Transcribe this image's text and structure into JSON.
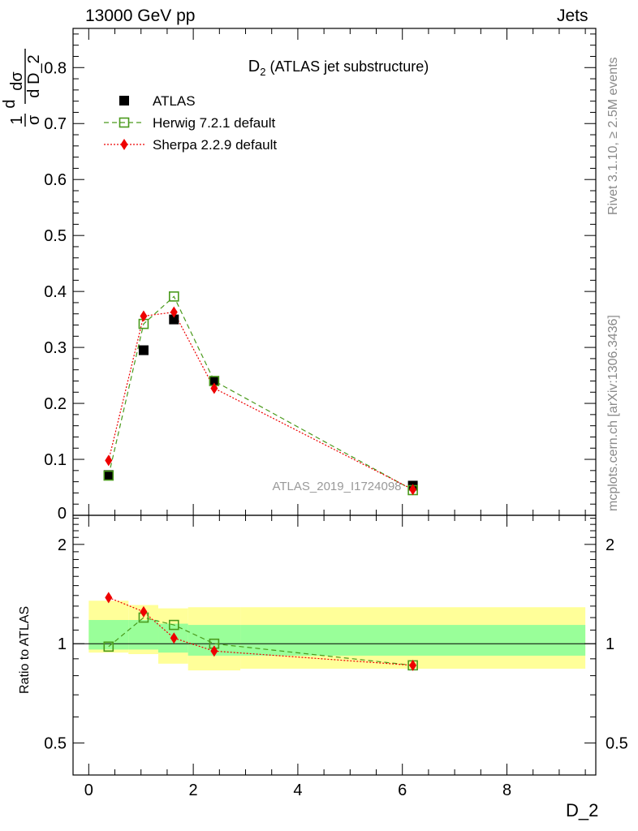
{
  "header": {
    "left": "13000 GeV pp",
    "right": "Jets"
  },
  "side": {
    "rivet": "Rivet 3.1.10, ≥ 2.5M events",
    "mcplots": "mcplots.cern.ch [arXiv:1306.3436]"
  },
  "chart_data": [
    {
      "type": "scatter",
      "title": "D",
      "title_sub": "2",
      "title_rest": " (ATLAS jet substructure)",
      "analysis_label": "ATLAS_2019_I1724098",
      "xlabel": "D_2",
      "ylabel_parts": {
        "frac1": "1",
        "sigma": "σ",
        "d": "d",
        "dsigma": "dσ",
        "dvar": "d D_2"
      },
      "xlim": [
        -0.3,
        9.7
      ],
      "ylim": [
        0,
        0.87
      ],
      "yticks": [
        "0.1",
        "0.2",
        "0.3",
        "0.4",
        "0.5",
        "0.6",
        "0.7",
        "0.8"
      ],
      "ytick_values": [
        0.1,
        0.2,
        0.3,
        0.4,
        0.5,
        0.6,
        0.7,
        0.8
      ],
      "ytick_zero": "0",
      "legend_position": "top-left",
      "series": [
        {
          "name": "ATLAS",
          "color": "#000000",
          "marker": "square-filled",
          "x": [
            0.38,
            1.05,
            1.63,
            2.4,
            6.2
          ],
          "y": [
            0.072,
            0.295,
            0.35,
            0.24,
            0.053
          ]
        },
        {
          "name": "Herwig 7.2.1 default",
          "color": "#4a9a1c",
          "marker": "square-open",
          "line": "dashed",
          "x": [
            0.38,
            1.05,
            1.63,
            2.4,
            6.2
          ],
          "y": [
            0.071,
            0.342,
            0.391,
            0.24,
            0.045
          ]
        },
        {
          "name": "Sherpa 2.2.9 default",
          "color": "#ee0000",
          "marker": "diamond-filled",
          "line": "dotted",
          "x": [
            0.38,
            1.05,
            1.63,
            2.4,
            6.2
          ],
          "y": [
            0.098,
            0.356,
            0.363,
            0.227,
            0.046
          ]
        }
      ]
    },
    {
      "type": "line",
      "ylabel": "Ratio to ATLAS",
      "xlabel": "D_2",
      "xlim": [
        -0.3,
        9.7
      ],
      "ylim": [
        0.4,
        2.45
      ],
      "log_y": true,
      "yticks": [
        "0.5",
        "1",
        "2"
      ],
      "ytick_values": [
        0.5,
        1,
        2
      ],
      "xticks": [
        "0",
        "2",
        "4",
        "6",
        "8"
      ],
      "xtick_values": [
        0,
        2,
        4,
        6,
        8
      ],
      "bands": {
        "edges": [
          0,
          0.76,
          1.33,
          1.9,
          2.9,
          9.5
        ],
        "yellow_lo": [
          0.94,
          0.93,
          0.87,
          0.83,
          0.84
        ],
        "yellow_hi": [
          1.35,
          1.31,
          1.28,
          1.29,
          1.29
        ],
        "green_lo": [
          0.96,
          0.96,
          0.94,
          0.92,
          0.92
        ],
        "green_hi": [
          1.18,
          1.18,
          1.15,
          1.14,
          1.14
        ],
        "yellow_color": "#ffff99",
        "green_color": "#99ff99"
      },
      "series": [
        {
          "name": "Herwig 7.2.1 default",
          "color": "#4a9a1c",
          "marker": "square-open",
          "line": "dashed",
          "x": [
            0.38,
            1.05,
            1.63,
            2.4,
            6.2
          ],
          "y": [
            0.98,
            1.2,
            1.14,
            1.0,
            0.86
          ]
        },
        {
          "name": "Sherpa 2.2.9 default",
          "color": "#ee0000",
          "marker": "diamond-filled",
          "line": "dotted",
          "x": [
            0.38,
            1.05,
            1.63,
            2.4,
            6.2
          ],
          "y": [
            1.38,
            1.25,
            1.04,
            0.95,
            0.86
          ]
        }
      ]
    }
  ]
}
